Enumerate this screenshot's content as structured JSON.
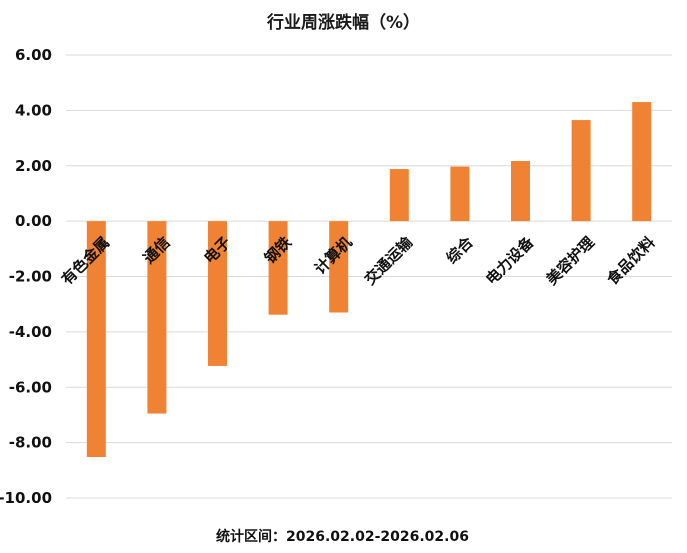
{
  "chart_data": {
    "type": "bar",
    "title": "行业周涨跌幅（%）",
    "categories": [
      "有色金属",
      "通信",
      "电子",
      "钢铁",
      "计算机",
      "交通运输",
      "综合",
      "电力设备",
      "美容护理",
      "食品饮料"
    ],
    "values": [
      -8.52,
      -6.95,
      -5.23,
      -3.38,
      -3.3,
      1.88,
      1.97,
      2.17,
      3.65,
      4.3
    ],
    "ylim": [
      -10,
      6
    ],
    "yticks": [
      "6.00",
      "4.00",
      "2.00",
      "0.00",
      "-2.00",
      "-4.00",
      "-6.00",
      "-8.00",
      "-10.00"
    ],
    "bar_color": "#F08234",
    "grid": true,
    "xlabel": "",
    "ylabel": ""
  },
  "footnote": "统计区间：2026.02.02-2026.02.06"
}
